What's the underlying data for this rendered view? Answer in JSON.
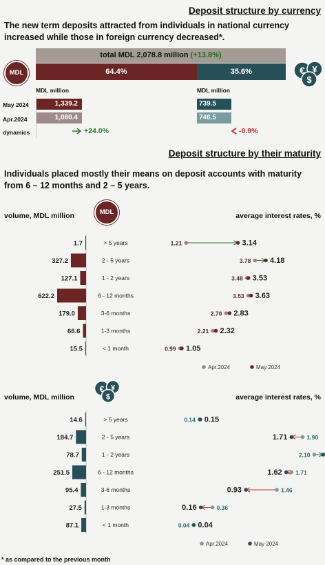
{
  "colors": {
    "mdl": "#6b2525",
    "mdl_light": "#9e8a8a",
    "fx": "#264f57",
    "fx_light": "#7a9ca0",
    "total_bar": "#a39b94",
    "green": "#2e7d32",
    "red": "#c62828"
  },
  "top": {
    "title": "Deposit structure by currency",
    "lead": "The new term deposits attracted from individuals in national currency increased while those in foreign currency decreased*.",
    "total_text": "total MDL 2,078.8 million",
    "total_change": "(+13.8%)",
    "mdl_share": "64.4%",
    "fx_share": "35.6%",
    "mdl_badge": "MDL",
    "unit_left": "MDL million",
    "unit_right": "MDL million",
    "rows": [
      "May 2024",
      "Apr.2024",
      "dynamics"
    ],
    "mdl_may": "1,339.2",
    "mdl_apr": "1,080.4",
    "fx_may": "739.5",
    "fx_apr": "746.5",
    "mdl_dyn": "+24.0%",
    "fx_dyn": "-0.9%",
    "mdl_share_value": 64.4,
    "fx_share_value": 35.6
  },
  "maturity": {
    "title": "Deposit structure by their maturity",
    "lead": "Individuals placed mostly their means on deposit accounts with maturity from 6 – 12 months and 2 – 5 years.",
    "volume_label": "volume, MDL million",
    "rates_label": "average interest rates, %",
    "mdl_badge": "MDL",
    "footnote": "* as compared to the previous month"
  },
  "chart_data": [
    {
      "type": "bar",
      "title": "",
      "xlabel": "volume, MDL million",
      "orientation": "horizontal",
      "currency": "MDL",
      "categories": [
        "> 5 years",
        "2 - 5 years",
        "1 - 2 years",
        "6 - 12 months",
        "3-6 months",
        "1-3 months",
        "< 1 month"
      ],
      "values": [
        1.7,
        327.2,
        127.1,
        622.2,
        179.0,
        66.6,
        15.5
      ],
      "labels": [
        "1.7",
        "327.2",
        "127.1",
        "622.2",
        "179.0",
        "66.6",
        "15.5"
      ]
    },
    {
      "type": "scatter",
      "xlabel": "average interest rates, %",
      "currency": "MDL",
      "categories": [
        "> 5 years",
        "2 - 5 years",
        "1 - 2 years",
        "6 - 12 months",
        "3-6 months",
        "1-3 months",
        "< 1 month"
      ],
      "series": [
        {
          "name": "Apr.2024",
          "values": [
            1.21,
            3.78,
            3.48,
            3.53,
            2.7,
            2.21,
            0.99
          ],
          "labels": [
            "1.21",
            "3.78",
            "3.48",
            "3.53",
            "2.70",
            "2.21",
            "0.99"
          ]
        },
        {
          "name": "May 2024",
          "values": [
            3.14,
            4.18,
            3.53,
            3.63,
            2.83,
            2.32,
            1.05
          ],
          "labels": [
            "3.14",
            "4.18",
            "3.53",
            "3.63",
            "2.83",
            "2.32",
            "1.05"
          ]
        }
      ]
    },
    {
      "type": "bar",
      "xlabel": "volume, MDL million",
      "orientation": "horizontal",
      "currency": "foreign",
      "categories": [
        "> 5 years",
        "2 - 5 years",
        "1 - 2 years",
        "6 - 12 months",
        "3-6 months",
        "1-3 months",
        "< 1 month"
      ],
      "values": [
        14.6,
        184.7,
        78.7,
        251.5,
        95.4,
        27.5,
        87.1
      ],
      "labels": [
        "14.6",
        "184.7",
        "78.7",
        "251.5",
        "95.4",
        "27.5",
        "87.1"
      ]
    },
    {
      "type": "scatter",
      "xlabel": "average interest rates, %",
      "currency": "foreign",
      "categories": [
        "> 5 years",
        "2 - 5 years",
        "1 - 2 years",
        "6 - 12 months",
        "3-6 months",
        "1-3 months",
        "< 1 month"
      ],
      "series": [
        {
          "name": "Apr.2024",
          "values": [
            0.14,
            1.9,
            2.1,
            1.71,
            1.46,
            0.36,
            0.04
          ],
          "labels": [
            "0.14",
            "1.90",
            "2.10",
            "1.71",
            "1.46",
            "0.36",
            "0.04"
          ]
        },
        {
          "name": "May 2024",
          "values": [
            0.15,
            1.71,
            2.25,
            1.62,
            0.93,
            0.16,
            0.04
          ],
          "labels": [
            "0.15",
            "1.71",
            "2.25",
            "1.62",
            "0.93",
            "0.16",
            "0.04"
          ]
        }
      ]
    }
  ]
}
